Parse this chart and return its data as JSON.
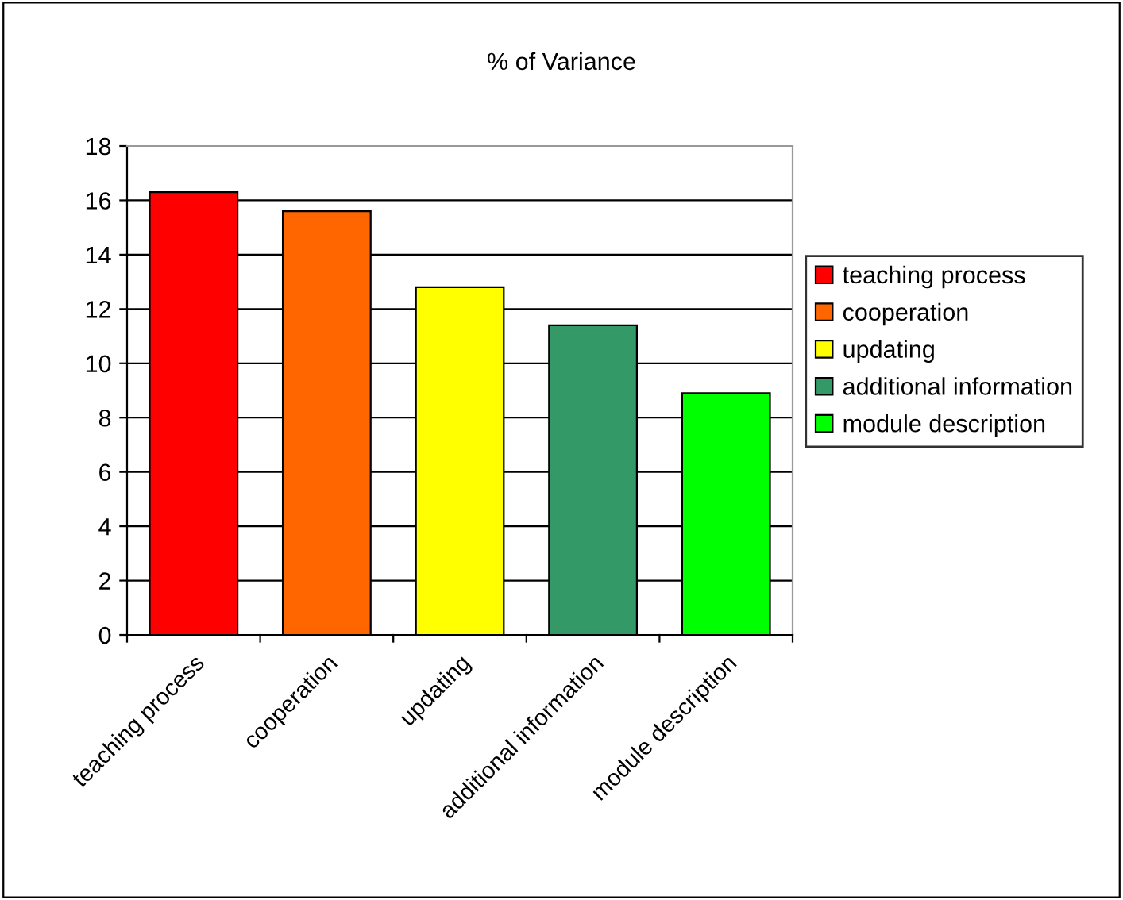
{
  "chart_data": {
    "type": "bar",
    "title": "% of Variance",
    "categories": [
      "teaching process",
      "cooperation",
      "updating",
      "additional information",
      "module description"
    ],
    "series": [
      {
        "name": "teaching process",
        "color": "#ff0000",
        "values": [
          16.3,
          null,
          null,
          null,
          null
        ]
      },
      {
        "name": "cooperation",
        "color": "#ff6600",
        "values": [
          null,
          15.6,
          null,
          null,
          null
        ]
      },
      {
        "name": "updating",
        "color": "#ffff00",
        "values": [
          null,
          null,
          12.8,
          null,
          null
        ]
      },
      {
        "name": "additional information",
        "color": "#339966",
        "values": [
          null,
          null,
          null,
          11.4,
          null
        ]
      },
      {
        "name": "module description",
        "color": "#00ff00",
        "values": [
          null,
          null,
          null,
          null,
          8.9
        ]
      }
    ],
    "ylim": [
      0,
      18
    ],
    "yticks": [
      0,
      2,
      4,
      6,
      8,
      10,
      12,
      14,
      16,
      18
    ],
    "grid": "y",
    "legend": "right"
  }
}
